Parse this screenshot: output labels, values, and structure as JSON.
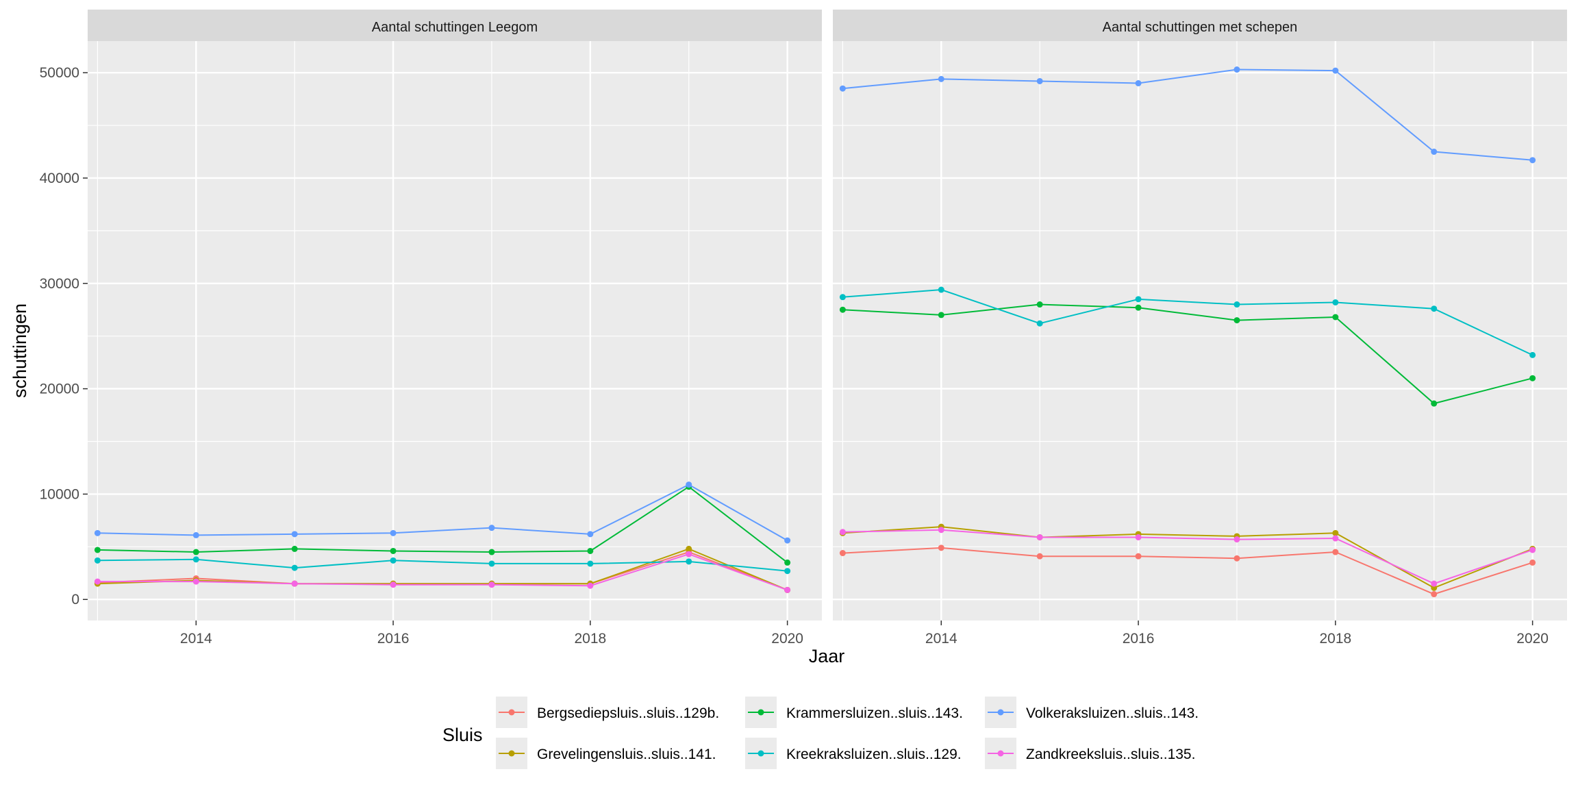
{
  "chart_data": {
    "type": "line",
    "xlabel": "Jaar",
    "ylabel": "schuttingen",
    "xlim": [
      2012.9,
      2020.35
    ],
    "ylim": [
      -2000,
      53000
    ],
    "x_ticks": [
      2014,
      2016,
      2018,
      2020
    ],
    "y_ticks": [
      0,
      10000,
      20000,
      30000,
      40000,
      50000
    ],
    "x_tick_labels": [
      "2014",
      "2016",
      "2018",
      "2020"
    ],
    "y_tick_labels": [
      "0",
      "10000",
      "20000",
      "30000",
      "40000",
      "50000"
    ],
    "legend": {
      "title": "Sluis",
      "placement": "bottom",
      "entries": [
        {
          "name": "Bergsediepsluis..sluis..129b.",
          "color": "#F8766D"
        },
        {
          "name": "Grevelingensluis..sluis..141.",
          "color": "#B79F00"
        },
        {
          "name": "Krammersluizen..sluis..143.",
          "color": "#00BA38"
        },
        {
          "name": "Kreekraksluizen..sluis..129.",
          "color": "#00BFC4"
        },
        {
          "name": "Volkeraksluizen..sluis..143.",
          "color": "#619CFF"
        },
        {
          "name": "Zandkreeksluis..sluis..135.",
          "color": "#F564E3"
        }
      ]
    },
    "x": [
      2013,
      2014,
      2015,
      2016,
      2017,
      2018,
      2019,
      2020
    ],
    "panels": [
      {
        "title": "Aantal schuttingen Leegom",
        "series": [
          {
            "name": "Bergsediepsluis..sluis..129b.",
            "values": [
              1600,
              2000,
              1500,
              1500,
              1500,
              1500,
              4500,
              900
            ]
          },
          {
            "name": "Grevelingensluis..sluis..141.",
            "values": [
              1500,
              1800,
              1500,
              1500,
              1500,
              1500,
              4800,
              900
            ]
          },
          {
            "name": "Krammersluizen..sluis..143.",
            "values": [
              4700,
              4500,
              4800,
              4600,
              4500,
              4600,
              10700,
              3500
            ]
          },
          {
            "name": "Kreekraksluizen..sluis..129.",
            "values": [
              3700,
              3800,
              3000,
              3700,
              3400,
              3400,
              3600,
              2700
            ]
          },
          {
            "name": "Volkeraksluizen..sluis..143.",
            "values": [
              6300,
              6100,
              6200,
              6300,
              6800,
              6200,
              10900,
              5600
            ]
          },
          {
            "name": "Zandkreeksluis..sluis..135.",
            "values": [
              1700,
              1700,
              1500,
              1400,
              1400,
              1300,
              4300,
              900
            ]
          }
        ]
      },
      {
        "title": "Aantal schuttingen met schepen",
        "series": [
          {
            "name": "Bergsediepsluis..sluis..129b.",
            "values": [
              4400,
              4900,
              4100,
              4100,
              3900,
              4500,
              500,
              3500
            ]
          },
          {
            "name": "Grevelingensluis..sluis..141.",
            "values": [
              6300,
              6900,
              5900,
              6200,
              6000,
              6300,
              1100,
              4800
            ]
          },
          {
            "name": "Krammersluizen..sluis..143.",
            "values": [
              27500,
              27000,
              28000,
              27700,
              26500,
              26800,
              18600,
              21000
            ]
          },
          {
            "name": "Kreekraksluizen..sluis..129.",
            "values": [
              28700,
              29400,
              26200,
              28500,
              28000,
              28200,
              27600,
              23200
            ]
          },
          {
            "name": "Volkeraksluizen..sluis..143.",
            "values": [
              48500,
              49400,
              49200,
              49000,
              50300,
              50200,
              42500,
              41700
            ]
          },
          {
            "name": "Zandkreeksluis..sluis..135.",
            "values": [
              6400,
              6600,
              5900,
              5900,
              5700,
              5800,
              1500,
              4700
            ]
          }
        ]
      }
    ]
  }
}
